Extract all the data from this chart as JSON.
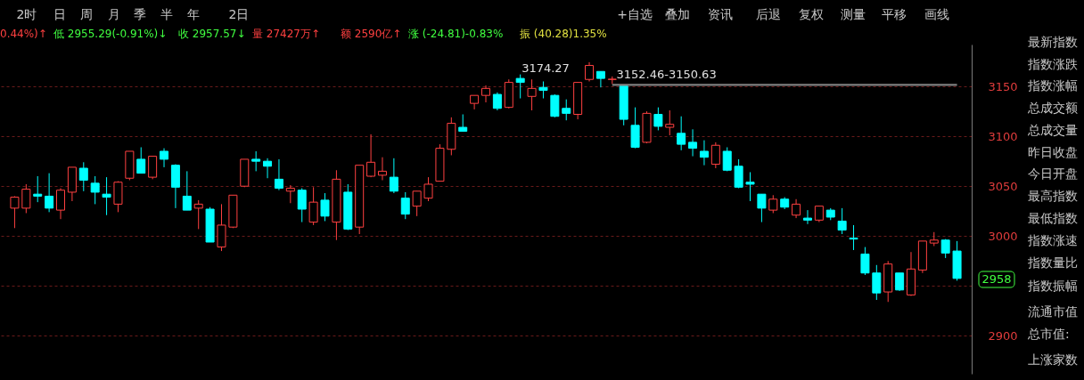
{
  "chart_data": {
    "type": "candlestick",
    "categories": [
      null,
      null,
      null,
      null,
      null,
      null,
      null,
      null,
      null,
      null,
      null,
      null,
      null,
      null,
      null,
      null,
      null,
      null,
      null,
      null,
      null,
      null,
      null,
      null,
      null,
      null,
      null,
      null,
      null,
      null,
      null,
      null,
      null,
      null,
      null,
      null,
      null,
      null,
      null,
      null,
      null,
      null,
      null,
      null,
      null,
      null,
      null,
      null,
      null,
      null,
      null,
      null,
      null,
      null,
      null,
      null,
      null,
      null,
      null,
      null,
      null,
      null,
      null,
      null,
      null,
      null,
      null,
      null,
      null,
      null,
      null,
      null,
      null,
      null,
      null,
      null,
      null,
      null,
      null,
      null,
      null,
      null,
      null
    ],
    "ohlc": [
      [
        3028,
        3040,
        3008,
        3039
      ],
      [
        3028,
        3052,
        3023,
        3047
      ],
      [
        3042,
        3060,
        3034,
        3040
      ],
      [
        3040,
        3063,
        3024,
        3028
      ],
      [
        3026,
        3048,
        3017,
        3046
      ],
      [
        3044,
        3069,
        3035,
        3069
      ],
      [
        3068,
        3074,
        3045,
        3056
      ],
      [
        3053,
        3060,
        3032,
        3044
      ],
      [
        3042,
        3059,
        3021,
        3039
      ],
      [
        3032,
        3055,
        3024,
        3054
      ],
      [
        3058,
        3085,
        3056,
        3085
      ],
      [
        3077,
        3089,
        3063,
        3063
      ],
      [
        3059,
        3080,
        3057,
        3080
      ],
      [
        3085,
        3088,
        3069,
        3077
      ],
      [
        3071,
        3072,
        3028,
        3049
      ],
      [
        3040,
        3065,
        3026,
        3026
      ],
      [
        3028,
        3036,
        3007,
        3032
      ],
      [
        3027,
        3029,
        2994,
        2994
      ],
      [
        2989,
        3032,
        2985,
        3011
      ],
      [
        3009,
        3041,
        3008,
        3041
      ],
      [
        3050,
        3077,
        3049,
        3077
      ],
      [
        3077,
        3085,
        3065,
        3075
      ],
      [
        3075,
        3078,
        3058,
        3070
      ],
      [
        3057,
        3077,
        3046,
        3048
      ],
      [
        3045,
        3051,
        3033,
        3048
      ],
      [
        3046,
        3048,
        3014,
        3027
      ],
      [
        3014,
        3049,
        3011,
        3034
      ],
      [
        3036,
        3043,
        3015,
        3020
      ],
      [
        3014,
        3066,
        2996,
        3057
      ],
      [
        3044,
        3052,
        3006,
        3007
      ],
      [
        3009,
        3071,
        3002,
        3071
      ],
      [
        3060,
        3102,
        3059,
        3074
      ],
      [
        3061,
        3079,
        3056,
        3065
      ],
      [
        3059,
        3078,
        3043,
        3045
      ],
      [
        3038,
        3044,
        3017,
        3022
      ],
      [
        3030,
        3045,
        3020,
        3045
      ],
      [
        3038,
        3059,
        3035,
        3052
      ],
      [
        3055,
        3092,
        3055,
        3088
      ],
      [
        3087,
        3119,
        3081,
        3113
      ],
      [
        3109,
        3122,
        3105,
        3105
      ],
      [
        3133,
        3141,
        3127,
        3141
      ],
      [
        3141,
        3151,
        3134,
        3148
      ],
      [
        3142,
        3144,
        3126,
        3128
      ],
      [
        3129,
        3157,
        3128,
        3154
      ],
      [
        3158,
        3162,
        3138,
        3154
      ],
      [
        3140,
        3157,
        3126,
        3148
      ],
      [
        3149,
        3155,
        3138,
        3146
      ],
      [
        3141,
        3142,
        3119,
        3120
      ],
      [
        3128,
        3137,
        3116,
        3123
      ],
      [
        3122,
        3154,
        3117,
        3154
      ],
      [
        3157,
        3174.27,
        3155,
        3171
      ],
      [
        3165,
        3165,
        3149,
        3158
      ],
      [
        3157,
        3160,
        3152.46,
        3157.2
      ],
      [
        3150.6,
        3150.63,
        3111,
        3117
      ],
      [
        3111,
        3129,
        3088,
        3089
      ],
      [
        3094,
        3125,
        3093,
        3123
      ],
      [
        3122,
        3129,
        3106,
        3110
      ],
      [
        3109,
        3126,
        3101,
        3112
      ],
      [
        3103,
        3120,
        3086,
        3092
      ],
      [
        3094,
        3107,
        3080,
        3088
      ],
      [
        3085,
        3096,
        3071,
        3079
      ],
      [
        3072,
        3094,
        3068,
        3091
      ],
      [
        3085,
        3089,
        3065,
        3066
      ],
      [
        3070,
        3077,
        3048,
        3049
      ],
      [
        3054,
        3064,
        3035,
        3052
      ],
      [
        3042,
        3042,
        3014,
        3028
      ],
      [
        3026,
        3041,
        3023,
        3037
      ],
      [
        3037,
        3039,
        3027,
        3029
      ],
      [
        3021,
        3037,
        3018,
        3032
      ],
      [
        3018,
        3026,
        3012,
        3016
      ],
      [
        3016,
        3030,
        3014,
        3030
      ],
      [
        3026,
        3028,
        3016,
        3019
      ],
      [
        3015,
        3028,
        3002,
        3006
      ],
      [
        2998,
        3011,
        2986,
        2997
      ],
      [
        2982,
        2989,
        2961,
        2963
      ],
      [
        2963,
        2971,
        2936,
        2943
      ],
      [
        2944,
        2975,
        2934,
        2972
      ],
      [
        2963,
        2963,
        2945,
        2946
      ],
      [
        2941,
        2984,
        2940,
        2967
      ],
      [
        2966,
        2995,
        2963,
        2995
      ],
      [
        2993,
        3004,
        2990,
        2996
      ],
      [
        2996,
        2997,
        2978,
        2983
      ],
      [
        2985,
        2995,
        2955.29,
        2957.57
      ]
    ],
    "colors": [
      "#ff4040",
      "#ff4040",
      "#00ffff",
      "#00ffff",
      "#ff4040",
      "#ff4040",
      "#00ffff",
      "#00ffff",
      "#00ffff",
      "#ff4040",
      "#ff4040",
      "#00ffff",
      "#ff4040",
      "#00ffff",
      "#00ffff",
      "#00ffff",
      "#ff4040",
      "#00ffff",
      "#ff4040",
      "#ff4040",
      "#ff4040",
      "#00ffff",
      "#00ffff",
      "#00ffff",
      "#ff4040",
      "#00ffff",
      "#ff4040",
      "#00ffff",
      "#ff4040",
      "#00ffff",
      "#ff4040",
      "#ff4040",
      "#ff4040",
      "#00ffff",
      "#00ffff",
      "#ff4040",
      "#ff4040",
      "#ff4040",
      "#ff4040",
      "#00ffff",
      "#ff4040",
      "#ff4040",
      "#00ffff",
      "#ff4040",
      "#00ffff",
      "#ff4040",
      "#00ffff",
      "#00ffff",
      "#00ffff",
      "#ff4040",
      "#ff4040",
      "#00ffff",
      "#ff4040",
      "#00ffff",
      "#00ffff",
      "#ff4040",
      "#00ffff",
      "#ff4040",
      "#00ffff",
      "#00ffff",
      "#00ffff",
      "#ff4040",
      "#00ffff",
      "#00ffff",
      "#00ffff",
      "#00ffff",
      "#ff4040",
      "#00ffff",
      "#ff4040",
      "#00ffff",
      "#ff4040",
      "#00ffff",
      "#00ffff",
      "#00ffff",
      "#00ffff",
      "#00ffff",
      "#ff4040",
      "#00ffff",
      "#ff4040",
      "#ff4040",
      "#ff4040",
      "#00ffff",
      "#00ffff"
    ],
    "ylim": [
      2862,
      3192
    ],
    "yticks": [
      2900,
      {
        "value": 2950,
        "label": null
      },
      3000,
      3050,
      3100,
      3150
    ],
    "grid": "y",
    "bands": [
      {
        "axis": "y",
        "from": 3150.63,
        "to": 3152.46,
        "label": "3152.46-3150.63",
        "color": "#808080"
      }
    ],
    "annotations": [
      "2时",
      "日",
      "周",
      "月",
      "季",
      "半",
      "年",
      "2日",
      "+自选",
      "叠加",
      "资讯",
      "后退",
      "复权",
      "测量",
      "平移",
      "画线",
      "0.44%)↑",
      "低 2955.29(-0.91%)↓",
      "收 2957.57↓",
      "量 27427万↑",
      "额 2590亿↑",
      "涨 (-24.81)-0.83%",
      "振 (40.28)1.35%",
      "最新指数",
      "指数涨跌",
      "指数涨幅",
      "总成交额",
      "总成交量",
      "昨日收盘",
      "今日开盘",
      "最高指数",
      "最低指数",
      "指数涨速",
      "指数量比",
      "指数振幅",
      "流通市值",
      "总市值:",
      "上涨家数",
      "3174.27",
      "2958"
    ]
  }
}
